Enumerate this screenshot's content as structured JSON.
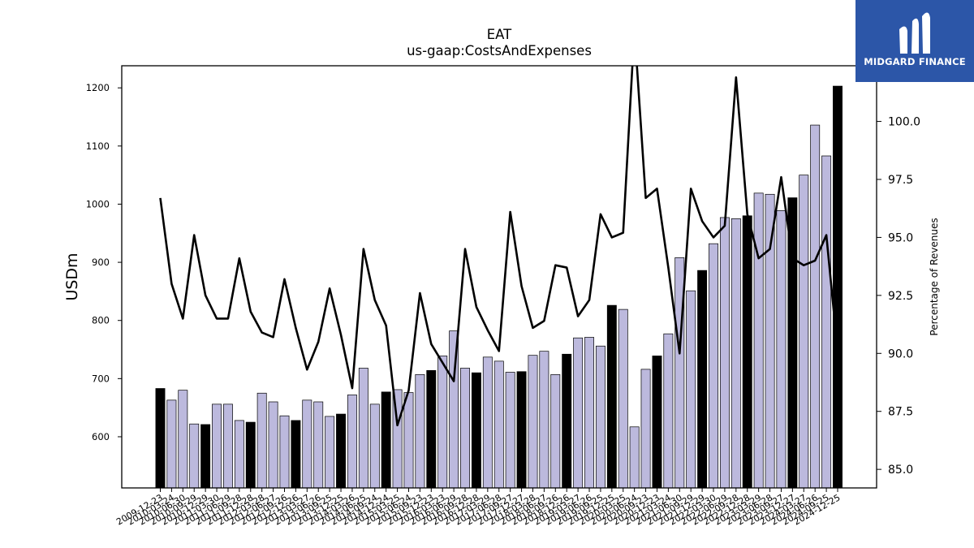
{
  "chart_data": {
    "type": "bar+line",
    "title": "EAT",
    "subtitle": "us-gaap:CostsAndExpenses",
    "ylabel": "USDm",
    "y2label": "Percentage of Revenues",
    "ylim": [
      512,
      1238
    ],
    "y2lim": [
      84.2,
      102.4
    ],
    "yticks": [
      600,
      700,
      800,
      900,
      1000,
      1100,
      1200
    ],
    "y2ticks": [
      "85.0",
      "87.5",
      "90.0",
      "92.5",
      "95.0",
      "97.5",
      "100.0"
    ],
    "categories": [
      "2009-12-23",
      "2010-03-24",
      "2010-06-30",
      "2010-09-29",
      "2010-12-29",
      "2011-03-30",
      "2011-06-29",
      "2011-09-28",
      "2011-12-28",
      "2012-03-28",
      "2012-06-27",
      "2012-09-26",
      "2012-12-26",
      "2013-03-27",
      "2013-06-26",
      "2013-09-25",
      "2013-12-25",
      "2014-03-26",
      "2014-06-25",
      "2014-09-24",
      "2014-12-24",
      "2015-03-25",
      "2015-06-24",
      "2015-09-23",
      "2015-12-23",
      "2016-03-23",
      "2016-06-29",
      "2016-09-28",
      "2016-12-28",
      "2017-03-29",
      "2017-06-28",
      "2017-09-27",
      "2017-12-27",
      "2018-03-28",
      "2018-06-27",
      "2018-09-26",
      "2018-12-26",
      "2019-03-27",
      "2019-06-26",
      "2019-09-25",
      "2019-12-25",
      "2020-03-25",
      "2020-06-24",
      "2020-09-23",
      "2020-12-23",
      "2021-03-24",
      "2021-06-30",
      "2021-09-29",
      "2021-12-29",
      "2022-03-30",
      "2022-06-29",
      "2022-09-28",
      "2022-12-28",
      "2023-03-29",
      "2023-06-28",
      "2023-09-27",
      "2023-12-27",
      "2024-03-27",
      "2024-06-26",
      "2024-09-25",
      "2024-12-25"
    ],
    "visible_tick_labels": [
      "2009-12-23",
      "2010-03-24",
      "2010-06-30",
      "2010-09-29",
      "2010-12-29",
      "2011-03-30",
      "2011-06-29",
      "2011-09-28",
      "2011-12-28",
      "2012-03-28",
      "2012-06-27",
      "2012-09-26",
      "2012-12-26",
      "2013-03-27",
      "2013-06-26",
      "2013-09-25",
      "2013-12-25",
      "2014-03-26",
      "2014-06-25",
      "2014-09-24",
      "2014-12-24",
      "2015-03-25",
      "2015-06-24",
      "2015-09-23",
      "2015-12-23",
      "2016-03-23",
      "2016-06-29",
      "2016-09-28",
      "2016-12-28",
      "2017-03-29",
      "2017-06-28",
      "2017-09-27",
      "2017-12-27",
      "2018-03-28",
      "2018-06-27",
      "2018-09-26",
      "2018-12-26",
      "2019-03-27",
      "2019-06-26",
      "2019-09-25",
      "2019-12-25",
      "2020-03-25",
      "2020-06-24",
      "2020-09-23",
      "2020-12-23",
      "2021-03-24",
      "2021-06-30",
      "2021-09-29",
      "2021-12-29",
      "2022-03-30",
      "2022-06-29",
      "2022-09-28",
      "2022-12-28",
      "2023-03-29",
      "2023-06-28",
      "2023-09-27",
      "2023-12-27",
      "2024-03-27",
      "2024-06-26",
      "2024-09-25",
      "2024-12-25"
    ],
    "series": [
      {
        "type": "bar",
        "values": [
          683,
          663,
          680,
          622,
          621,
          656,
          656,
          628,
          625,
          675,
          660,
          636,
          628,
          663,
          660,
          635,
          639,
          672,
          718,
          656,
          677,
          681,
          676,
          707,
          714,
          739,
          782,
          718,
          710,
          737,
          730,
          711,
          712,
          740,
          747,
          707,
          742,
          770,
          771,
          756,
          826,
          819,
          617,
          716,
          739,
          777,
          908,
          851,
          886,
          932,
          977,
          975,
          980,
          1019,
          1017,
          989,
          1011,
          1050,
          1136,
          1083,
          1203
        ],
        "highlight": [
          true,
          false,
          false,
          false,
          true,
          false,
          false,
          false,
          true,
          false,
          false,
          false,
          true,
          false,
          false,
          false,
          true,
          false,
          false,
          false,
          true,
          false,
          false,
          false,
          true,
          false,
          false,
          false,
          true,
          false,
          false,
          false,
          true,
          false,
          false,
          false,
          true,
          false,
          false,
          false,
          true,
          false,
          false,
          false,
          true,
          false,
          false,
          false,
          true,
          false,
          false,
          false,
          true,
          false,
          false,
          false,
          true,
          false,
          false,
          false,
          true
        ]
      },
      {
        "type": "line",
        "axis": "right",
        "values": [
          96.7,
          93.0,
          91.5,
          95.1,
          92.5,
          91.5,
          91.5,
          94.1,
          91.8,
          90.9,
          90.7,
          93.2,
          91.1,
          89.3,
          90.5,
          92.8,
          90.8,
          88.5,
          94.5,
          92.3,
          91.2,
          86.9,
          88.4,
          92.6,
          90.4,
          89.6,
          88.8,
          94.5,
          92.0,
          91.0,
          90.1,
          96.1,
          92.9,
          91.1,
          91.4,
          93.8,
          93.7,
          91.6,
          92.3,
          96.0,
          95.0,
          95.2,
          104.0,
          96.7,
          97.1,
          93.7,
          90.0,
          97.1,
          95.7,
          95.0,
          95.5,
          101.9,
          96.0,
          94.1,
          94.5,
          97.6,
          94.1,
          93.8,
          94.0,
          95.1,
          90.1
        ]
      }
    ],
    "colors": {
      "bar_fill": "#bcb9dd",
      "bar_highlight": "#000000",
      "bar_edge": "#000000",
      "line": "#000000"
    }
  },
  "logo": {
    "text": "MIDGARD FINANCE",
    "background": "#2c56a8"
  }
}
